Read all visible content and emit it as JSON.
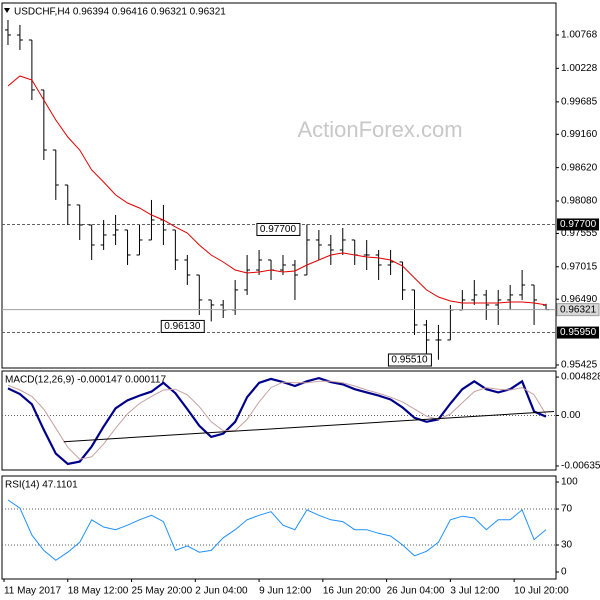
{
  "watermark": "ActionForex.com",
  "chart_data": [
    {
      "type": "ohlc",
      "title": "USDCHF,H4  0.96394 0.96416 0.96321 0.96321",
      "color": "#000000",
      "x": [
        3,
        9,
        15,
        21,
        27,
        33,
        39,
        45,
        51,
        57,
        63,
        69,
        75,
        81,
        87,
        93,
        99,
        105,
        111,
        117,
        123,
        129,
        135,
        141,
        147,
        153,
        159,
        165,
        171,
        177,
        183,
        189,
        195,
        201,
        207,
        213,
        219,
        225,
        231,
        237,
        243,
        249,
        255,
        261,
        267,
        273
      ],
      "xlim": [
        0,
        278
      ],
      "xticks": [
        {
          "value": 1,
          "label": "11 May 2017"
        },
        {
          "value": 33,
          "label": "18 May 12:00"
        },
        {
          "value": 65,
          "label": "25 May 20:00"
        },
        {
          "value": 97,
          "label": "2 Jun 04:00"
        },
        {
          "value": 129,
          "label": "9 Jun 12:00"
        },
        {
          "value": 161,
          "label": "16 Jun 20:00"
        },
        {
          "value": 193,
          "label": "26 Jun 04:00"
        },
        {
          "value": 225,
          "label": "3 Jul 12:00"
        },
        {
          "value": 257,
          "label": "10 Jul 20:00"
        }
      ],
      "open": [
        1.0085,
        1.00768,
        1.00687,
        0.99878,
        0.98906,
        0.98339,
        0.98016,
        0.97692,
        0.97368,
        0.9753,
        0.97611,
        0.97206,
        0.97449,
        0.97773,
        0.97611,
        0.97125,
        0.96882,
        0.96478,
        0.96397,
        0.96316,
        0.9664,
        0.96963,
        0.97125,
        0.96963,
        0.97044,
        0.96882,
        0.97449,
        0.97368,
        0.97287,
        0.97449,
        0.97206,
        0.97206,
        0.97044,
        0.97093,
        0.9664,
        0.96073,
        0.9583,
        0.9583,
        0.96316,
        0.96478,
        0.96559,
        0.96397,
        0.96478,
        0.96559,
        0.9672,
        0.96394
      ],
      "high": [
        1.01011,
        1.0093,
        1.00687,
        0.99878,
        0.98906,
        0.98339,
        0.98016,
        0.97692,
        0.97773,
        0.97854,
        0.97611,
        0.97692,
        0.98097,
        0.98016,
        0.97611,
        0.97206,
        0.96882,
        0.96478,
        0.96478,
        0.96801,
        0.97206,
        0.97287,
        0.97125,
        0.97206,
        0.97125,
        0.977,
        0.97611,
        0.9753,
        0.97643,
        0.97449,
        0.97449,
        0.97287,
        0.97287,
        0.97093,
        0.9664,
        0.96154,
        0.96073,
        0.96397,
        0.9664,
        0.96801,
        0.9664,
        0.9664,
        0.9672,
        0.96963,
        0.9672,
        0.96416
      ],
      "low": [
        1.00606,
        1.00525,
        0.99716,
        0.98744,
        0.98097,
        0.97692,
        0.97449,
        0.97125,
        0.97287,
        0.97368,
        0.97044,
        0.97206,
        0.97449,
        0.97368,
        0.96963,
        0.9672,
        0.96235,
        0.9613,
        0.96186,
        0.96235,
        0.96559,
        0.96882,
        0.96801,
        0.96882,
        0.96478,
        0.96882,
        0.97125,
        0.97044,
        0.97206,
        0.97044,
        0.96963,
        0.96801,
        0.96882,
        0.96478,
        0.95911,
        0.95587,
        0.9551,
        0.9583,
        0.96316,
        0.96397,
        0.96154,
        0.96073,
        0.96316,
        0.96478,
        0.96073,
        0.96321
      ],
      "close": [
        1.00768,
        1.00687,
        0.99878,
        0.98906,
        0.98339,
        0.98016,
        0.97692,
        0.97368,
        0.9753,
        0.97611,
        0.97206,
        0.97449,
        0.97773,
        0.97611,
        0.97125,
        0.96882,
        0.96478,
        0.96397,
        0.96316,
        0.9664,
        0.96963,
        0.97125,
        0.96963,
        0.97044,
        0.96882,
        0.97449,
        0.97368,
        0.97287,
        0.97449,
        0.97206,
        0.97206,
        0.97044,
        0.97093,
        0.9664,
        0.96073,
        0.9583,
        0.9583,
        0.96316,
        0.96478,
        0.96559,
        0.96397,
        0.96478,
        0.96559,
        0.9672,
        0.96478,
        0.96321
      ],
      "ma": {
        "color": "#e00000",
        "values": [
          0.99942,
          1.00104,
          1.00039,
          0.99716,
          0.99392,
          0.99117,
          0.98906,
          0.98582,
          0.98388,
          0.98178,
          0.98048,
          0.97967,
          0.97854,
          0.97773,
          0.9766,
          0.97562,
          0.97368,
          0.97206,
          0.97093,
          0.96963,
          0.96915,
          0.96931,
          0.96963,
          0.96931,
          0.96947,
          0.97044,
          0.97125,
          0.97206,
          0.97239,
          0.97206,
          0.97174,
          0.97158,
          0.97125,
          0.97028,
          0.96834,
          0.9664,
          0.96526,
          0.96461,
          0.96429,
          0.96429,
          0.96429,
          0.96429,
          0.96445,
          0.96445,
          0.96429,
          0.96397
        ]
      },
      "ylim": [
        0.95376,
        1.01286
      ],
      "yticks": [
        1.00768,
        1.00228,
        0.99685,
        {
          "value": 0.9916,
          "label": "0.99160"
        },
        {
          "value": 0.9862,
          "label": "0.98620"
        },
        {
          "value": 0.9808,
          "label": "0.98080"
        },
        0.97555,
        0.97015,
        {
          "value": 0.9649,
          "label": "0.96490"
        },
        0.95425
      ],
      "levels": [
        {
          "value": 0.977,
          "label": "0.97700"
        },
        {
          "value": 0.9595,
          "label": "0.95950"
        }
      ],
      "last_price": 0.96321,
      "annotations": [
        {
          "x": 153,
          "value": 0.977,
          "label": "0.97700"
        },
        {
          "x": 105,
          "value": 0.9613,
          "label": "0.96130"
        },
        {
          "x": 219,
          "value": 0.9551,
          "label": "0.95510"
        }
      ]
    },
    {
      "type": "line",
      "title": "MACD(12,26,9) -0.000147 0.000117",
      "ylim": [
        -0.00686,
        0.00559
      ],
      "yticks": [
        0.004828,
        {
          "value": 0,
          "label": "0.00"
        },
        -0.006352
      ],
      "levels": [
        0
      ],
      "series": [
        {
          "color": "#00008b",
          "values": [
            0.0034,
            0.0027,
            0.0014,
            -0.0018,
            -0.0048,
            -0.0061,
            -0.0058,
            -0.0039,
            -0.0014,
            0.0009,
            0.0019,
            0.0025,
            0.003,
            0.0041,
            0.0028,
            0.0008,
            -0.0013,
            -0.0027,
            -0.0023,
            -0.0008,
            0.0023,
            0.0041,
            0.0046,
            0.0042,
            0.0037,
            0.0043,
            0.0047,
            0.0042,
            0.0039,
            0.0033,
            0.0029,
            0.0025,
            0.002,
            0.001,
            -0.0003,
            -0.0008,
            -0.0005,
            0.0015,
            0.0033,
            0.0043,
            0.0033,
            0.0029,
            0.0033,
            0.0043,
            0.0005,
            -0.000147
          ]
        },
        {
          "color": "#c8a0a0",
          "values": [
            0.0038,
            0.0032,
            0.0024,
            0.0008,
            -0.0016,
            -0.004,
            -0.0055,
            -0.0052,
            -0.0036,
            -0.0016,
            0.0002,
            0.0015,
            0.0024,
            0.0032,
            0.0033,
            0.0026,
            0.0011,
            -0.0008,
            -0.0019,
            -0.0019,
            -0.0005,
            0.0017,
            0.0035,
            0.0042,
            0.0041,
            0.0041,
            0.0043,
            0.0043,
            0.0041,
            0.0037,
            0.0032,
            0.0028,
            0.0023,
            0.0017,
            0.0008,
            -0.0001,
            -0.0005,
            0.0002,
            0.0016,
            0.003,
            0.0035,
            0.0033,
            0.0032,
            0.0035,
            0.0026,
            0.000117
          ]
        }
      ],
      "trendline": {
        "color": "#000000",
        "x": [
          31,
          277
        ],
        "values": [
          -0.0033,
          0.0005
        ]
      }
    },
    {
      "type": "line",
      "title": "RSI(14) 47.1101",
      "ylim": [
        -7.8,
        106.7
      ],
      "yticks": [
        100,
        70,
        30,
        0
      ],
      "levels": [
        70,
        30
      ],
      "series": [
        {
          "color": "#1e90ff",
          "values": [
            80,
            71,
            41,
            24,
            13,
            22,
            33,
            58,
            50,
            47,
            52,
            58,
            63,
            56,
            24,
            29,
            22,
            24,
            38,
            47,
            58,
            63,
            67,
            52,
            47,
            69,
            63,
            58,
            56,
            47,
            47,
            43,
            40,
            30,
            18,
            23,
            33,
            58,
            62,
            60,
            47,
            58,
            58,
            69,
            36,
            47.1101
          ]
        }
      ]
    }
  ]
}
